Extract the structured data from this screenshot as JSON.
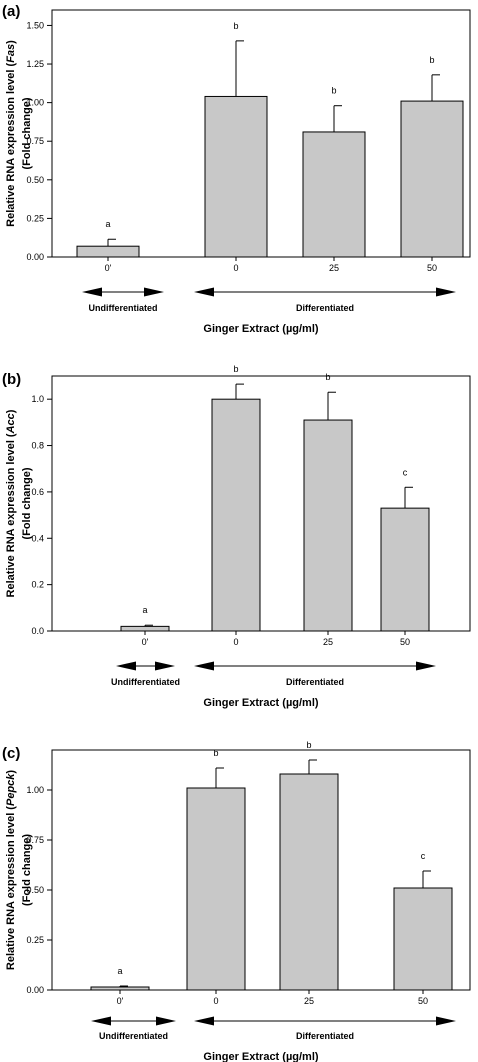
{
  "chart_data": [
    {
      "type": "bar",
      "panel": "(a)",
      "ylabel_line1": "Relative RNA expression level (",
      "ylabel_gene": "Fas",
      "ylabel_line1_end": ")",
      "ylabel_line2": "(Fold change)",
      "xlabel": "Ginger Extract (µg/ml)",
      "categories": [
        "0'",
        "0",
        "25",
        "50"
      ],
      "values": [
        0.07,
        1.04,
        0.81,
        1.01
      ],
      "errors": [
        0.045,
        0.36,
        0.17,
        0.17
      ],
      "letters": [
        "a",
        "b",
        "b",
        "b"
      ],
      "ylim": [
        0,
        1.6
      ],
      "yticks": [
        "0.00",
        "0.25",
        "0.50",
        "0.75",
        "1.00",
        "1.25",
        "1.50"
      ],
      "ytick_values": [
        0,
        0.25,
        0.5,
        0.75,
        1.0,
        1.25,
        1.5
      ],
      "groups": [
        "Undifferentiated",
        "Differentiated"
      ],
      "bar_color": "#c8c8c8"
    },
    {
      "type": "bar",
      "panel": "(b)",
      "ylabel_line1": "Relative RNA expression level (",
      "ylabel_gene": "Acc",
      "ylabel_line1_end": ")",
      "ylabel_line2": "(Fold change)",
      "xlabel": "Ginger Extract (µg/ml)",
      "categories": [
        "0'",
        "0",
        "25",
        "50"
      ],
      "values": [
        0.02,
        1.0,
        0.91,
        0.53
      ],
      "errors": [
        0.005,
        0.065,
        0.12,
        0.09
      ],
      "letters": [
        "a",
        "b",
        "b",
        "c"
      ],
      "ylim": [
        0,
        1.1
      ],
      "yticks": [
        "0.0",
        "0.2",
        "0.4",
        "0.6",
        "0.8",
        "1.0"
      ],
      "ytick_values": [
        0,
        0.2,
        0.4,
        0.6,
        0.8,
        1.0
      ],
      "groups": [
        "Undifferentiated",
        "Differentiated"
      ],
      "bar_color": "#c8c8c8"
    },
    {
      "type": "bar",
      "panel": "(c)",
      "ylabel_line1": "Relative RNA expression level (",
      "ylabel_gene": "Pepck",
      "ylabel_line1_end": ")",
      "ylabel_line2": "(Fold change)",
      "xlabel": "Ginger Extract (µg/ml)",
      "categories": [
        "0'",
        "0",
        "25",
        "50"
      ],
      "values": [
        0.015,
        1.01,
        1.08,
        0.51
      ],
      "errors": [
        0.005,
        0.1,
        0.07,
        0.085
      ],
      "letters": [
        "a",
        "b",
        "b",
        "c"
      ],
      "ylim": [
        0,
        1.2
      ],
      "yticks": [
        "0.00",
        "0.25",
        "0.50",
        "0.75",
        "1.00"
      ],
      "ytick_values": [
        0,
        0.25,
        0.5,
        0.75,
        1.0
      ],
      "groups": [
        "Undifferentiated",
        "Differentiated"
      ],
      "bar_color": "#c8c8c8"
    }
  ]
}
